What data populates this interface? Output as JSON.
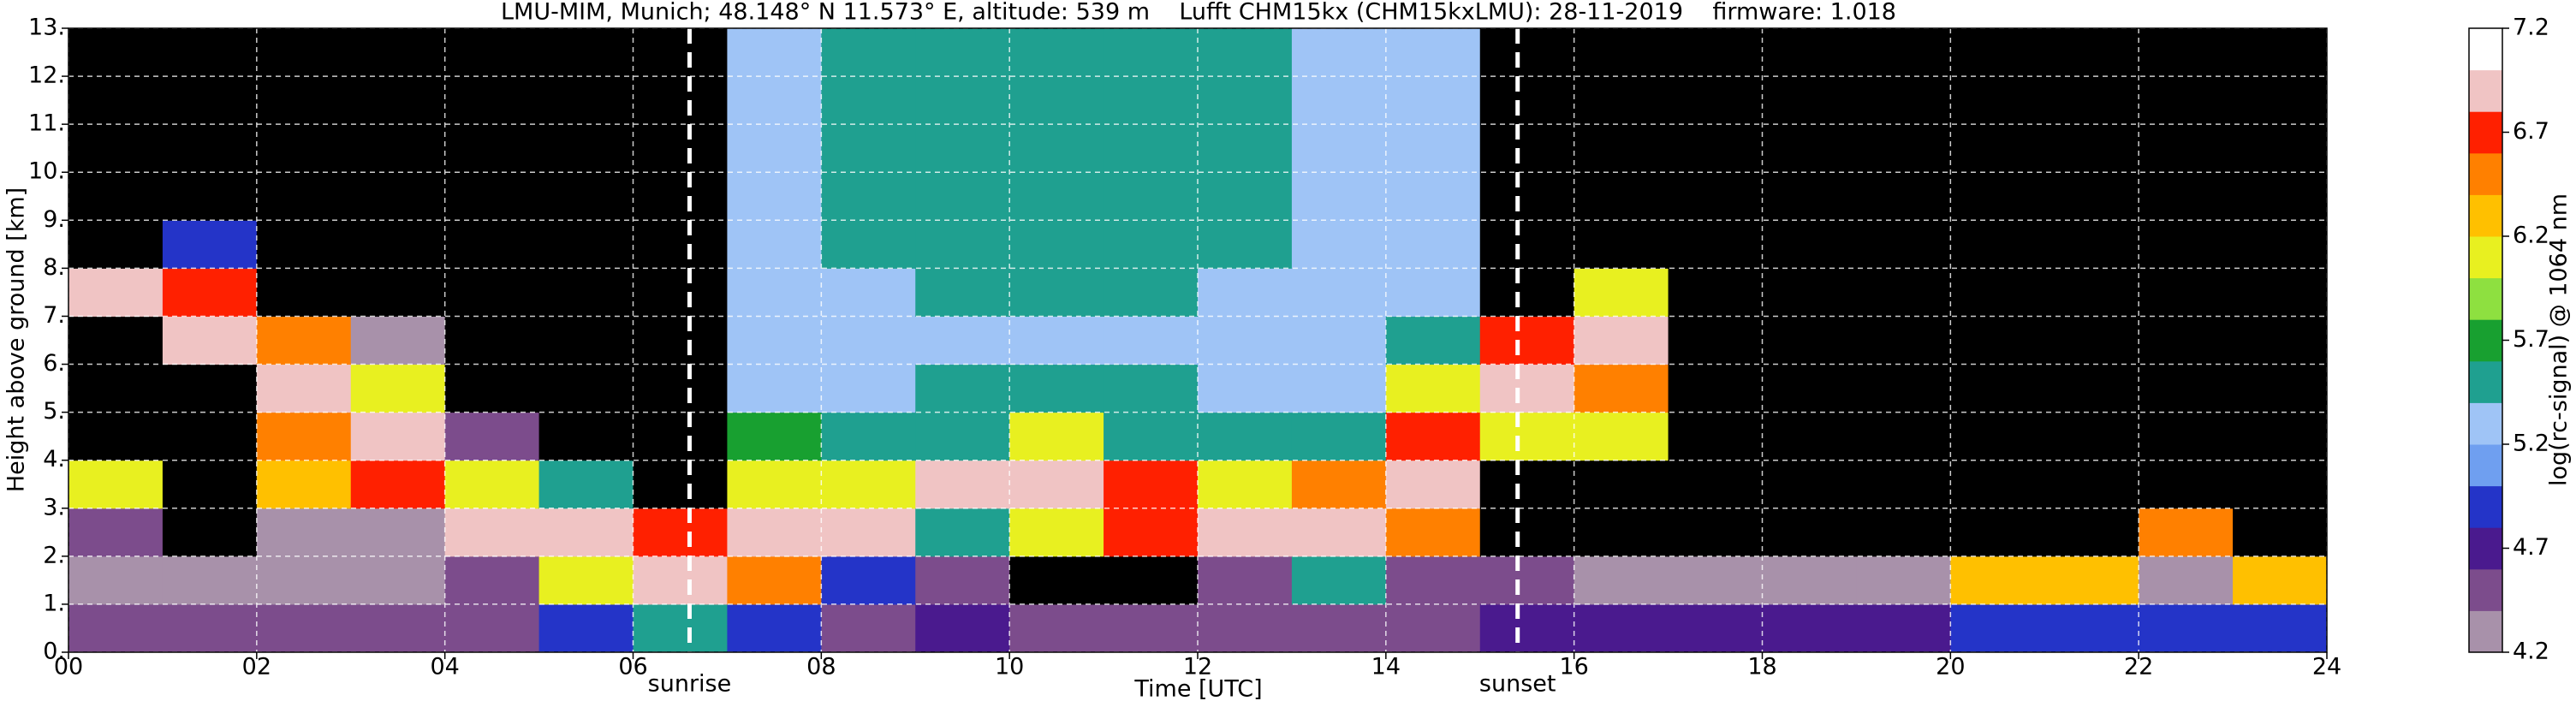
{
  "chart_data": {
    "type": "heatmap",
    "title": "LMU-MIM, Munich; 48.148° N 11.573° E, altitude: 539 m    Lufft CHM15kx (CHM15kxLMU): 28-11-2019    firmware: 1.018",
    "xlabel": "Time [UTC]",
    "ylabel": "Height above ground [km]",
    "colorbar_label": "log(rc-signal) @ 1064 nm",
    "xlim": [
      0,
      24
    ],
    "xticks": [
      {
        "value": 0,
        "label": "00"
      },
      {
        "value": 2,
        "label": "02"
      },
      {
        "value": 4,
        "label": "04"
      },
      {
        "value": 6,
        "label": "06"
      },
      {
        "value": 8,
        "label": "08"
      },
      10,
      12,
      14,
      16,
      18,
      20,
      22,
      24
    ],
    "ylim": [
      0,
      13
    ],
    "yticks": [
      {
        "value": 0,
        "label": "0."
      },
      {
        "value": 1,
        "label": "1."
      },
      {
        "value": 2,
        "label": "2."
      },
      {
        "value": 3,
        "label": "3."
      },
      {
        "value": 4,
        "label": "4."
      },
      {
        "value": 5,
        "label": "5."
      },
      {
        "value": 6,
        "label": "6."
      },
      {
        "value": 7,
        "label": "7."
      },
      {
        "value": 8,
        "label": "8."
      },
      {
        "value": 9,
        "label": "9."
      },
      {
        "value": 10,
        "label": "10."
      },
      {
        "value": 11,
        "label": "11."
      },
      {
        "value": 12,
        "label": "12."
      },
      {
        "value": 13,
        "label": "13."
      }
    ],
    "clim": [
      4.2,
      7.2
    ],
    "cticks": [
      4.2,
      4.7,
      5.2,
      5.7,
      6.2,
      6.7,
      7.2
    ],
    "grid": true,
    "under_color": "#000000",
    "colors": [
      "#a891aa",
      "#7c4c8c",
      "#4a1a8e",
      "#2434c8",
      "#6f9ff0",
      "#9fc4f6",
      "#1fa090",
      "#18a030",
      "#8ee040",
      "#e8f020",
      "#ffc000",
      "#ff8000",
      "#ff2000",
      "#f0c4c4",
      "#ffffff"
    ],
    "annotations": [
      {
        "text": "sunrise",
        "x": 6.6
      },
      {
        "text": "sunset",
        "x": 15.4
      }
    ],
    "z": [
      [
        4.6,
        4.6,
        4.6,
        4.6,
        4.6,
        4.9,
        5.5,
        4.9,
        4.6,
        4.7,
        4.6,
        4.6,
        4.6,
        4.6,
        4.6,
        4.8,
        4.8,
        4.8,
        4.8,
        4.8,
        4.9,
        4.9,
        4.9,
        4.9
      ],
      [
        4.3,
        4.3,
        4.3,
        4.3,
        4.4,
        6.0,
        7.0,
        6.5,
        5.0,
        4.4,
        4.0,
        4.0,
        4.5,
        5.5,
        4.4,
        4.4,
        4.3,
        4.3,
        4.3,
        4.3,
        6.3,
        6.3,
        4.3,
        6.3
      ],
      [
        4.4,
        4.0,
        4.3,
        4.3,
        7.0,
        7.0,
        6.8,
        7.0,
        7.0,
        5.5,
        6.0,
        6.8,
        7.0,
        7.0,
        6.5,
        4.0,
        4.0,
        4.0,
        4.0,
        4.0,
        4.0,
        4.0,
        6.5,
        4.0
      ],
      [
        6.0,
        4.0,
        6.2,
        6.8,
        6.0,
        5.5,
        4.0,
        6.0,
        6.0,
        7.0,
        7.0,
        6.8,
        6.0,
        6.5,
        7.0,
        4.0,
        4.0,
        4.0,
        4.0,
        4.0,
        4.0,
        4.0,
        4.0,
        4.0
      ],
      [
        4.0,
        4.0,
        6.5,
        7.0,
        4.5,
        4.0,
        4.0,
        5.8,
        5.5,
        5.5,
        6.0,
        5.5,
        5.5,
        5.5,
        6.8,
        6.0,
        6.0,
        4.0,
        4.0,
        4.0,
        4.0,
        4.0,
        4.0,
        4.0
      ],
      [
        4.0,
        4.0,
        7.0,
        6.0,
        4.0,
        4.0,
        4.0,
        5.2,
        5.3,
        5.6,
        5.6,
        5.5,
        5.3,
        5.3,
        6.0,
        7.0,
        6.5,
        4.0,
        4.0,
        4.0,
        4.0,
        4.0,
        4.0,
        4.0
      ],
      [
        4.0,
        7.0,
        6.5,
        4.3,
        4.0,
        4.0,
        4.0,
        5.2,
        5.3,
        5.3,
        5.3,
        5.3,
        5.3,
        5.3,
        5.5,
        6.8,
        7.0,
        4.0,
        4.0,
        4.0,
        4.0,
        4.0,
        4.0,
        4.0
      ],
      [
        7.0,
        6.8,
        4.0,
        4.0,
        4.0,
        4.0,
        4.0,
        5.2,
        5.3,
        5.4,
        5.4,
        5.4,
        5.3,
        5.3,
        5.2,
        4.0,
        6.0,
        4.0,
        4.0,
        4.0,
        4.0,
        4.0,
        4.0,
        4.0
      ],
      [
        4.0,
        5.0,
        4.0,
        4.0,
        4.0,
        4.0,
        4.0,
        5.2,
        5.4,
        5.5,
        5.5,
        5.5,
        5.4,
        5.3,
        5.2,
        4.0,
        4.0,
        4.0,
        4.0,
        4.0,
        4.0,
        4.0,
        4.0,
        4.0
      ],
      [
        4.0,
        4.0,
        4.0,
        4.0,
        4.0,
        4.0,
        4.0,
        5.2,
        5.4,
        5.5,
        5.5,
        5.5,
        5.4,
        5.3,
        5.2,
        4.0,
        4.0,
        4.0,
        4.0,
        4.0,
        4.0,
        4.0,
        4.0,
        4.0
      ],
      [
        4.0,
        4.0,
        4.0,
        4.0,
        4.0,
        4.0,
        4.0,
        5.2,
        5.4,
        5.5,
        5.5,
        5.5,
        5.4,
        5.3,
        5.2,
        4.0,
        4.0,
        4.0,
        4.0,
        4.0,
        4.0,
        4.0,
        4.0,
        4.0
      ],
      [
        4.0,
        4.0,
        4.0,
        4.0,
        4.0,
        4.0,
        4.0,
        5.2,
        5.4,
        5.5,
        5.5,
        5.5,
        5.4,
        5.3,
        5.2,
        4.0,
        4.0,
        4.0,
        4.0,
        4.0,
        4.0,
        4.0,
        4.0,
        4.0
      ],
      [
        4.0,
        4.0,
        4.0,
        4.0,
        4.0,
        4.0,
        4.0,
        5.2,
        5.4,
        5.5,
        5.5,
        5.5,
        5.4,
        5.3,
        5.2,
        4.0,
        4.0,
        4.0,
        4.0,
        4.0,
        4.0,
        4.0,
        4.0,
        4.0
      ]
    ]
  }
}
